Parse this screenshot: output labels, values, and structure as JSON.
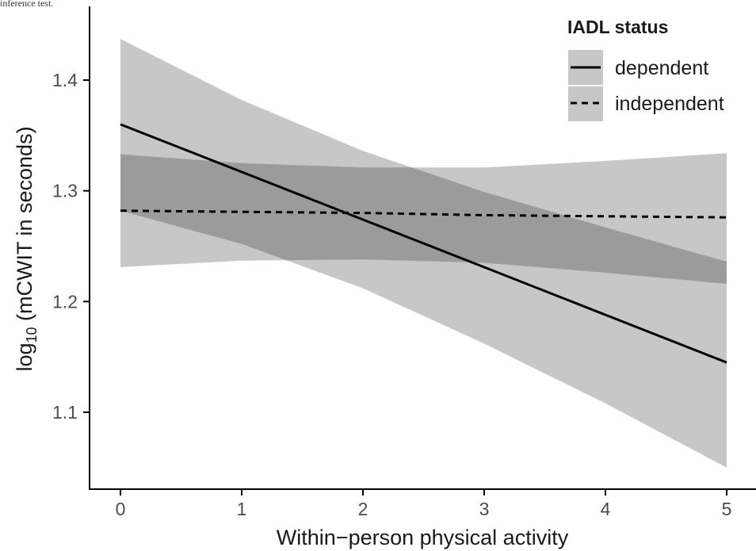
{
  "top_caption": "inference test.",
  "chart_data": {
    "type": "line",
    "xlabel": "Within−person physical activity",
    "ylabel_main": "log",
    "ylabel_sub": "10",
    "ylabel_rest": " (mCWIT in seconds)",
    "xlim": [
      -0.2,
      5.05
    ],
    "ylim": [
      1.035,
      1.455
    ],
    "x_ticks": [
      0,
      1,
      2,
      3,
      4,
      5
    ],
    "x_tick_labels": [
      "0",
      "1",
      "2",
      "3",
      "4",
      "5"
    ],
    "y_ticks": [
      1.1,
      1.2,
      1.3,
      1.4
    ],
    "y_tick_labels": [
      "1.1",
      "1.2",
      "1.3",
      "1.4"
    ],
    "grid": false,
    "legend": {
      "title": "IADL status",
      "position": "top-right"
    },
    "series": [
      {
        "name": "dependent",
        "line_style": "solid",
        "x": [
          0,
          1,
          2,
          3,
          4,
          5
        ],
        "y": [
          1.36,
          1.317,
          1.274,
          1.231,
          1.188,
          1.145
        ],
        "lower": [
          1.282,
          1.252,
          1.212,
          1.162,
          1.108,
          1.05
        ],
        "upper": [
          1.437,
          1.382,
          1.336,
          1.299,
          1.267,
          1.236
        ]
      },
      {
        "name": "independent",
        "line_style": "dashed",
        "x": [
          0,
          1,
          2,
          3,
          4,
          5
        ],
        "y": [
          1.282,
          1.281,
          1.28,
          1.278,
          1.277,
          1.276
        ],
        "lower": [
          1.231,
          1.237,
          1.238,
          1.235,
          1.226,
          1.216
        ],
        "upper": [
          1.333,
          1.325,
          1.321,
          1.321,
          1.327,
          1.334
        ]
      }
    ],
    "colors": {
      "band": "#000000",
      "band_opacity": 0.22,
      "line": "#000000",
      "axis": "#000000",
      "tick_label": "#4d4d4d"
    }
  }
}
